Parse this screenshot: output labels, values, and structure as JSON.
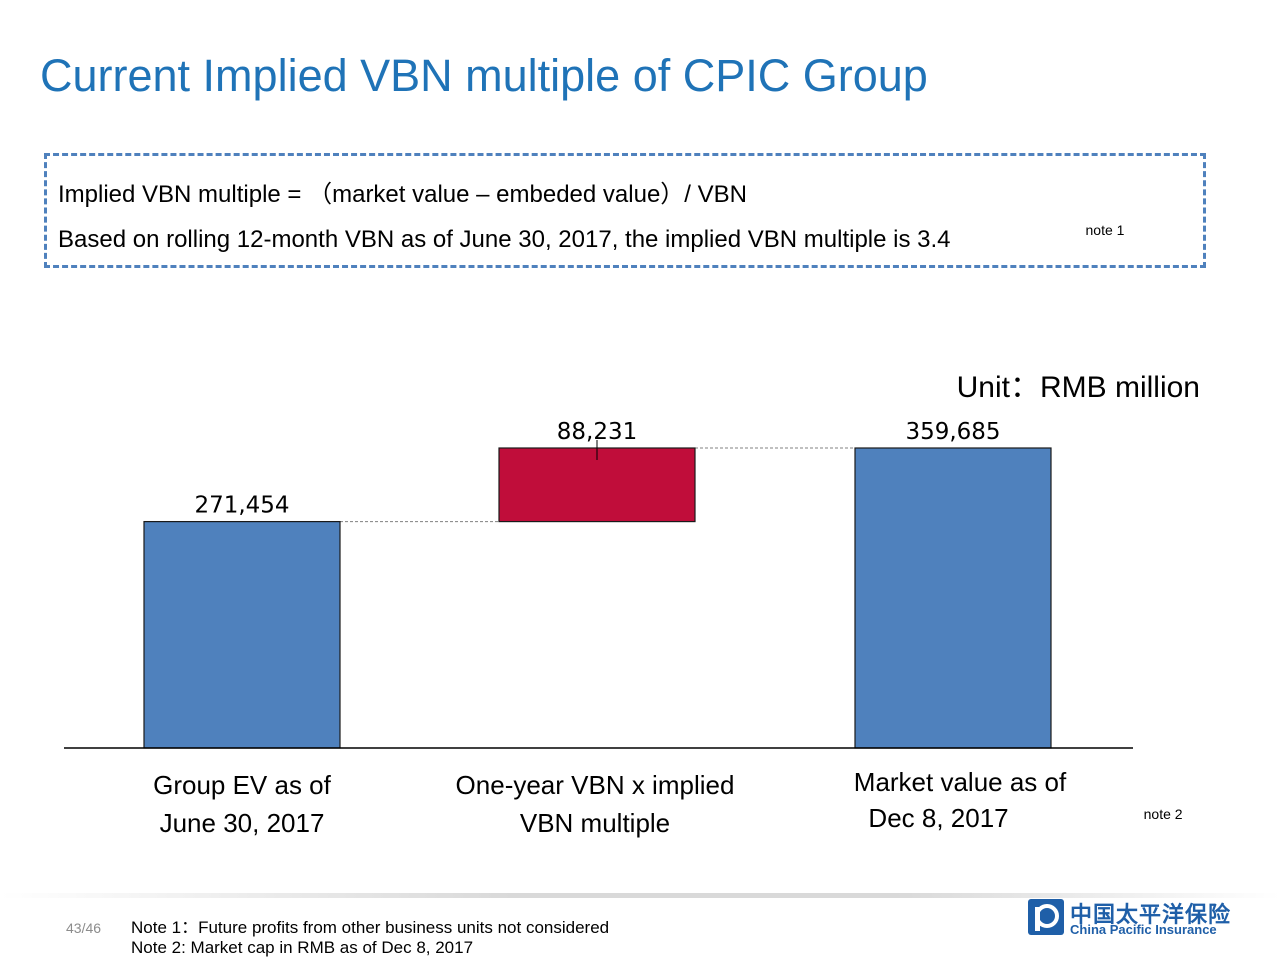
{
  "header": {
    "title": "Current Implied VBN multiple of CPIC Group"
  },
  "definition": {
    "line1": "Implied VBN multiple = （market value – embeded value）/ VBN",
    "line2": "Based on rolling 12-month VBN as of June 30, 2017, the implied VBN multiple is 3.4",
    "line2_note": "note 1"
  },
  "unit_label": "Unit：RMB million",
  "chart_data": {
    "type": "bar",
    "subtype": "waterfall",
    "categories": [
      [
        "Group EV as of",
        "June 30, 2017"
      ],
      [
        "One-year VBN x implied",
        "VBN multiple"
      ],
      [
        "Market value as of",
        "Dec 8, 2017"
      ]
    ],
    "category_notes": [
      "",
      "",
      "note 2"
    ],
    "values": [
      271454,
      88231,
      359685
    ],
    "labels": [
      "271,454",
      "88,231",
      "359,685"
    ],
    "bases": [
      0,
      271454,
      0
    ],
    "colors": [
      "#4f81bd",
      "#c00d3a",
      "#4f81bd"
    ],
    "ylim": [
      0,
      359685
    ]
  },
  "footer": {
    "page": "43/46",
    "note1": "Note 1：Future profits from other business units not considered",
    "note2": "Note 2:   Market cap  in RMB as of Dec 8, 2017",
    "logo_cn": "中国太平洋保险",
    "logo_en": "China Pacific Insurance",
    "brand_color": "#1f5fa8"
  }
}
